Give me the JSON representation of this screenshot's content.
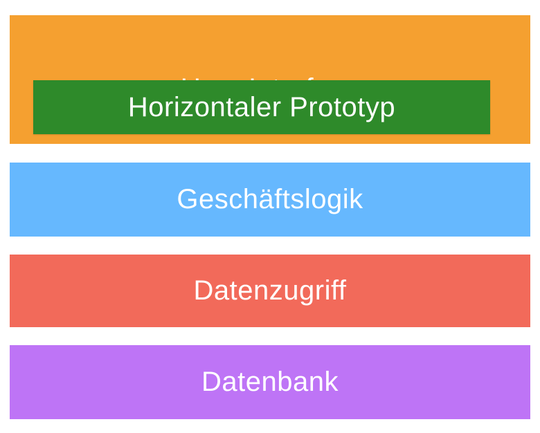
{
  "layers": [
    {
      "label": "User Interface",
      "color": "#F5A030"
    },
    {
      "label": "Geschäftslogik",
      "color": "#66B8FE"
    },
    {
      "label": "Datenzugriff",
      "color": "#F26A5A"
    },
    {
      "label": "Datenbank",
      "color": "#BE74F6"
    }
  ],
  "overlay": {
    "label": "Horizontaler Prototyp",
    "color": "#2E8A2A"
  }
}
